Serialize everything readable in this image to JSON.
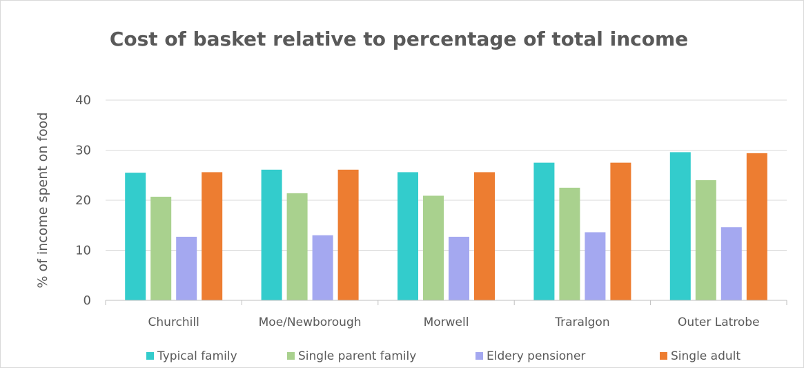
{
  "chart_data": {
    "type": "bar",
    "title": "Cost of basket relative to percentage of total income",
    "xlabel": "",
    "ylabel": "% of income spent on food",
    "ylim": [
      0,
      40
    ],
    "yticks": [
      0,
      10,
      20,
      30,
      40
    ],
    "grid": true,
    "legend_position": "bottom",
    "categories": [
      "Churchill",
      "Moe/Newborough",
      "Morwell",
      "Traralgon",
      "Outer Latrobe"
    ],
    "series": [
      {
        "name": "Typical family",
        "color": "#33cccc",
        "values": [
          25.5,
          26.1,
          25.6,
          27.5,
          29.6
        ]
      },
      {
        "name": "Single parent family",
        "color": "#a9d18e",
        "values": [
          20.7,
          21.4,
          20.9,
          22.5,
          24.0
        ]
      },
      {
        "name": "Eldery pensioner",
        "color": "#a4a8f0",
        "values": [
          12.7,
          13.0,
          12.7,
          13.6,
          14.6
        ]
      },
      {
        "name": "Single adult",
        "color": "#ed7d31",
        "values": [
          25.6,
          26.1,
          25.6,
          27.5,
          29.4
        ]
      }
    ]
  }
}
